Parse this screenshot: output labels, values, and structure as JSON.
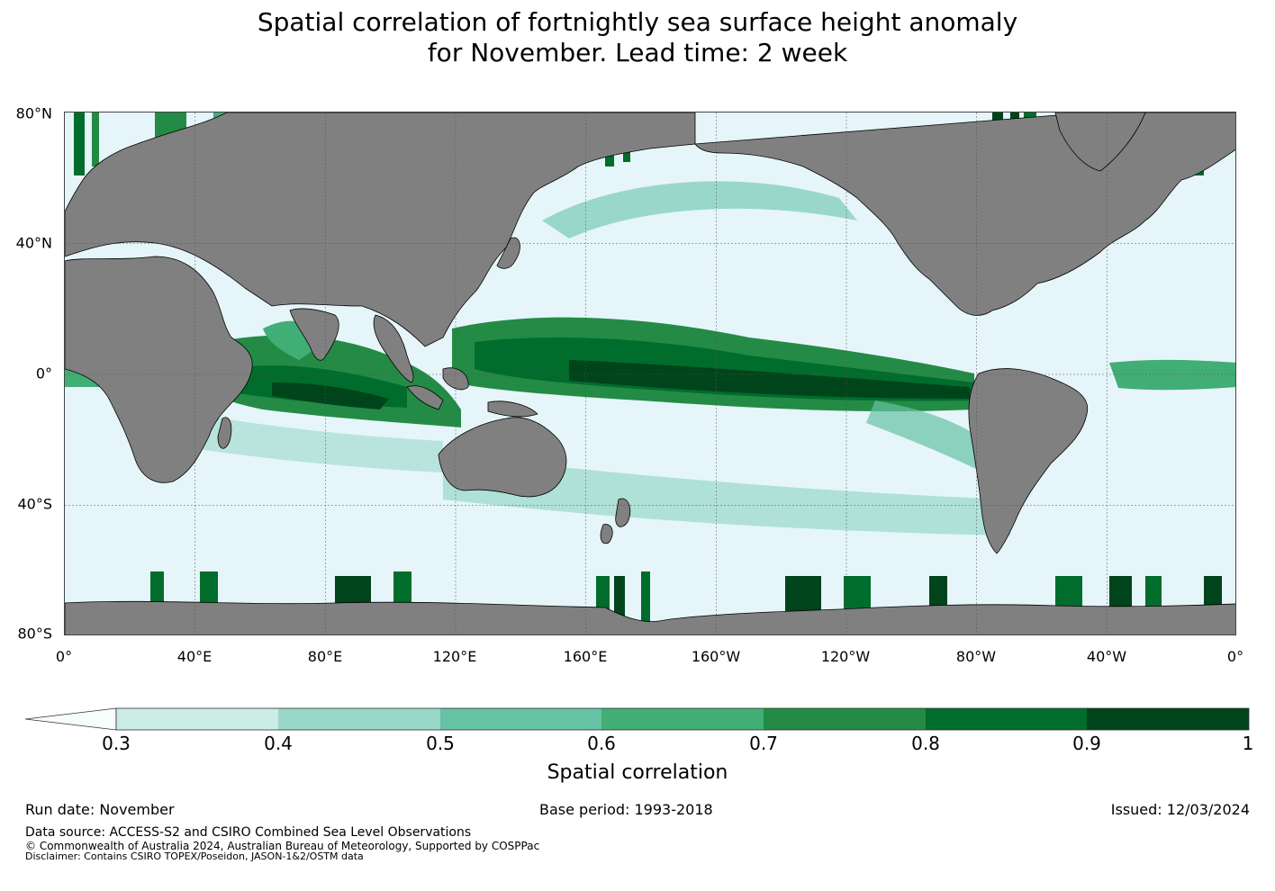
{
  "title": {
    "line1": "Spatial correlation of fortnightly sea surface height anomaly",
    "line2": "for November. Lead time: 2 week"
  },
  "map": {
    "lat_ticks": [
      "80°N",
      "40°N",
      "0°",
      "40°S",
      "80°S"
    ],
    "lon_ticks": [
      "0°",
      "40°E",
      "80°E",
      "120°E",
      "160°E",
      "160°W",
      "120°W",
      "80°W",
      "40°W",
      "0°"
    ],
    "land_color": "#808080",
    "ocean_low_color": "#e5f5f9"
  },
  "colorbar": {
    "title": "Spatial correlation",
    "extend_color": "#f7fcfd",
    "bins": [
      {
        "color": "#ccece6"
      },
      {
        "color": "#99d8c9"
      },
      {
        "color": "#66c2a4"
      },
      {
        "color": "#41ae76"
      },
      {
        "color": "#238b45"
      },
      {
        "color": "#006d2c"
      },
      {
        "color": "#00441b"
      }
    ],
    "tick_labels": [
      "0.3",
      "0.4",
      "0.5",
      "0.6",
      "0.7",
      "0.8",
      "0.9",
      "1"
    ]
  },
  "footer": {
    "run_date": "Run date: November",
    "base_period": "Base period: 1993-2018",
    "issued": "Issued: 12/03/2024",
    "data_source": "Data source: ACCESS-S2 and CSIRO Combined Sea Level Observations",
    "copyright": "© Commonwealth of Australia 2024, Australian Bureau of Meteorology, Supported by COSPPac",
    "disclaimer": "Disclaimer: Contains CSIRO TOPEX/Poseidon, JASON-1&2/OSTM data"
  }
}
